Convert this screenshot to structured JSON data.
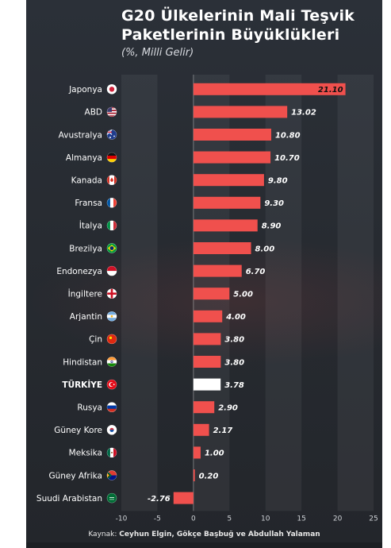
{
  "title": "G20 Ülkelerinin Mali Teşvik Paketlerinin Büyüklükleri",
  "subtitle": "(%, Milli Gelir)",
  "source_prefix": "Kaynak:",
  "source_authors": "Ceyhun Elgin, Gökçe Başbuğ ve Abdullah Yalaman",
  "colors": {
    "bar": "#f0504d",
    "highlight_bar": "#ffffff",
    "background": "#272b31",
    "text": "#ffffff"
  },
  "chart_data": {
    "type": "bar",
    "orientation": "horizontal",
    "categories": [
      "Japonya",
      "ABD",
      "Avustralya",
      "Almanya",
      "Kanada",
      "Fransa",
      "İtalya",
      "Brezilya",
      "Endonezya",
      "İngiltere",
      "Arjantin",
      "Çin",
      "Hindistan",
      "TÜRKİYE",
      "Rusya",
      "Güney Kore",
      "Meksika",
      "Güney Afrika",
      "Suudi Arabistan"
    ],
    "values": [
      21.1,
      13.02,
      10.8,
      10.7,
      9.8,
      9.3,
      8.9,
      8.0,
      6.7,
      5.0,
      4.0,
      3.8,
      3.8,
      3.78,
      2.9,
      2.17,
      1.0,
      0.2,
      -2.76
    ],
    "value_labels": [
      "21.10",
      "13.02",
      "10.80",
      "10.70",
      "9.80",
      "9.30",
      "8.90",
      "8.00",
      "6.70",
      "5.00",
      "4.00",
      "3.80",
      "3.80",
      "3.78",
      "2.90",
      "2.17",
      "1.00",
      "0.20",
      "-2.76"
    ],
    "highlight": "TÜRKİYE",
    "flag_icons": [
      "japan-flag-icon",
      "usa-flag-icon",
      "australia-flag-icon",
      "germany-flag-icon",
      "canada-flag-icon",
      "france-flag-icon",
      "italy-flag-icon",
      "brazil-flag-icon",
      "indonesia-flag-icon",
      "uk-flag-icon",
      "argentina-flag-icon",
      "china-flag-icon",
      "india-flag-icon",
      "turkey-flag-icon",
      "russia-flag-icon",
      "south-korea-flag-icon",
      "mexico-flag-icon",
      "south-africa-flag-icon",
      "saudi-arabia-flag-icon"
    ],
    "xlim": [
      -10,
      25
    ],
    "xticks": [
      "-10",
      "-5",
      "0",
      "5",
      "10",
      "15",
      "20",
      "25"
    ],
    "grid": "alternating vertical bands"
  }
}
